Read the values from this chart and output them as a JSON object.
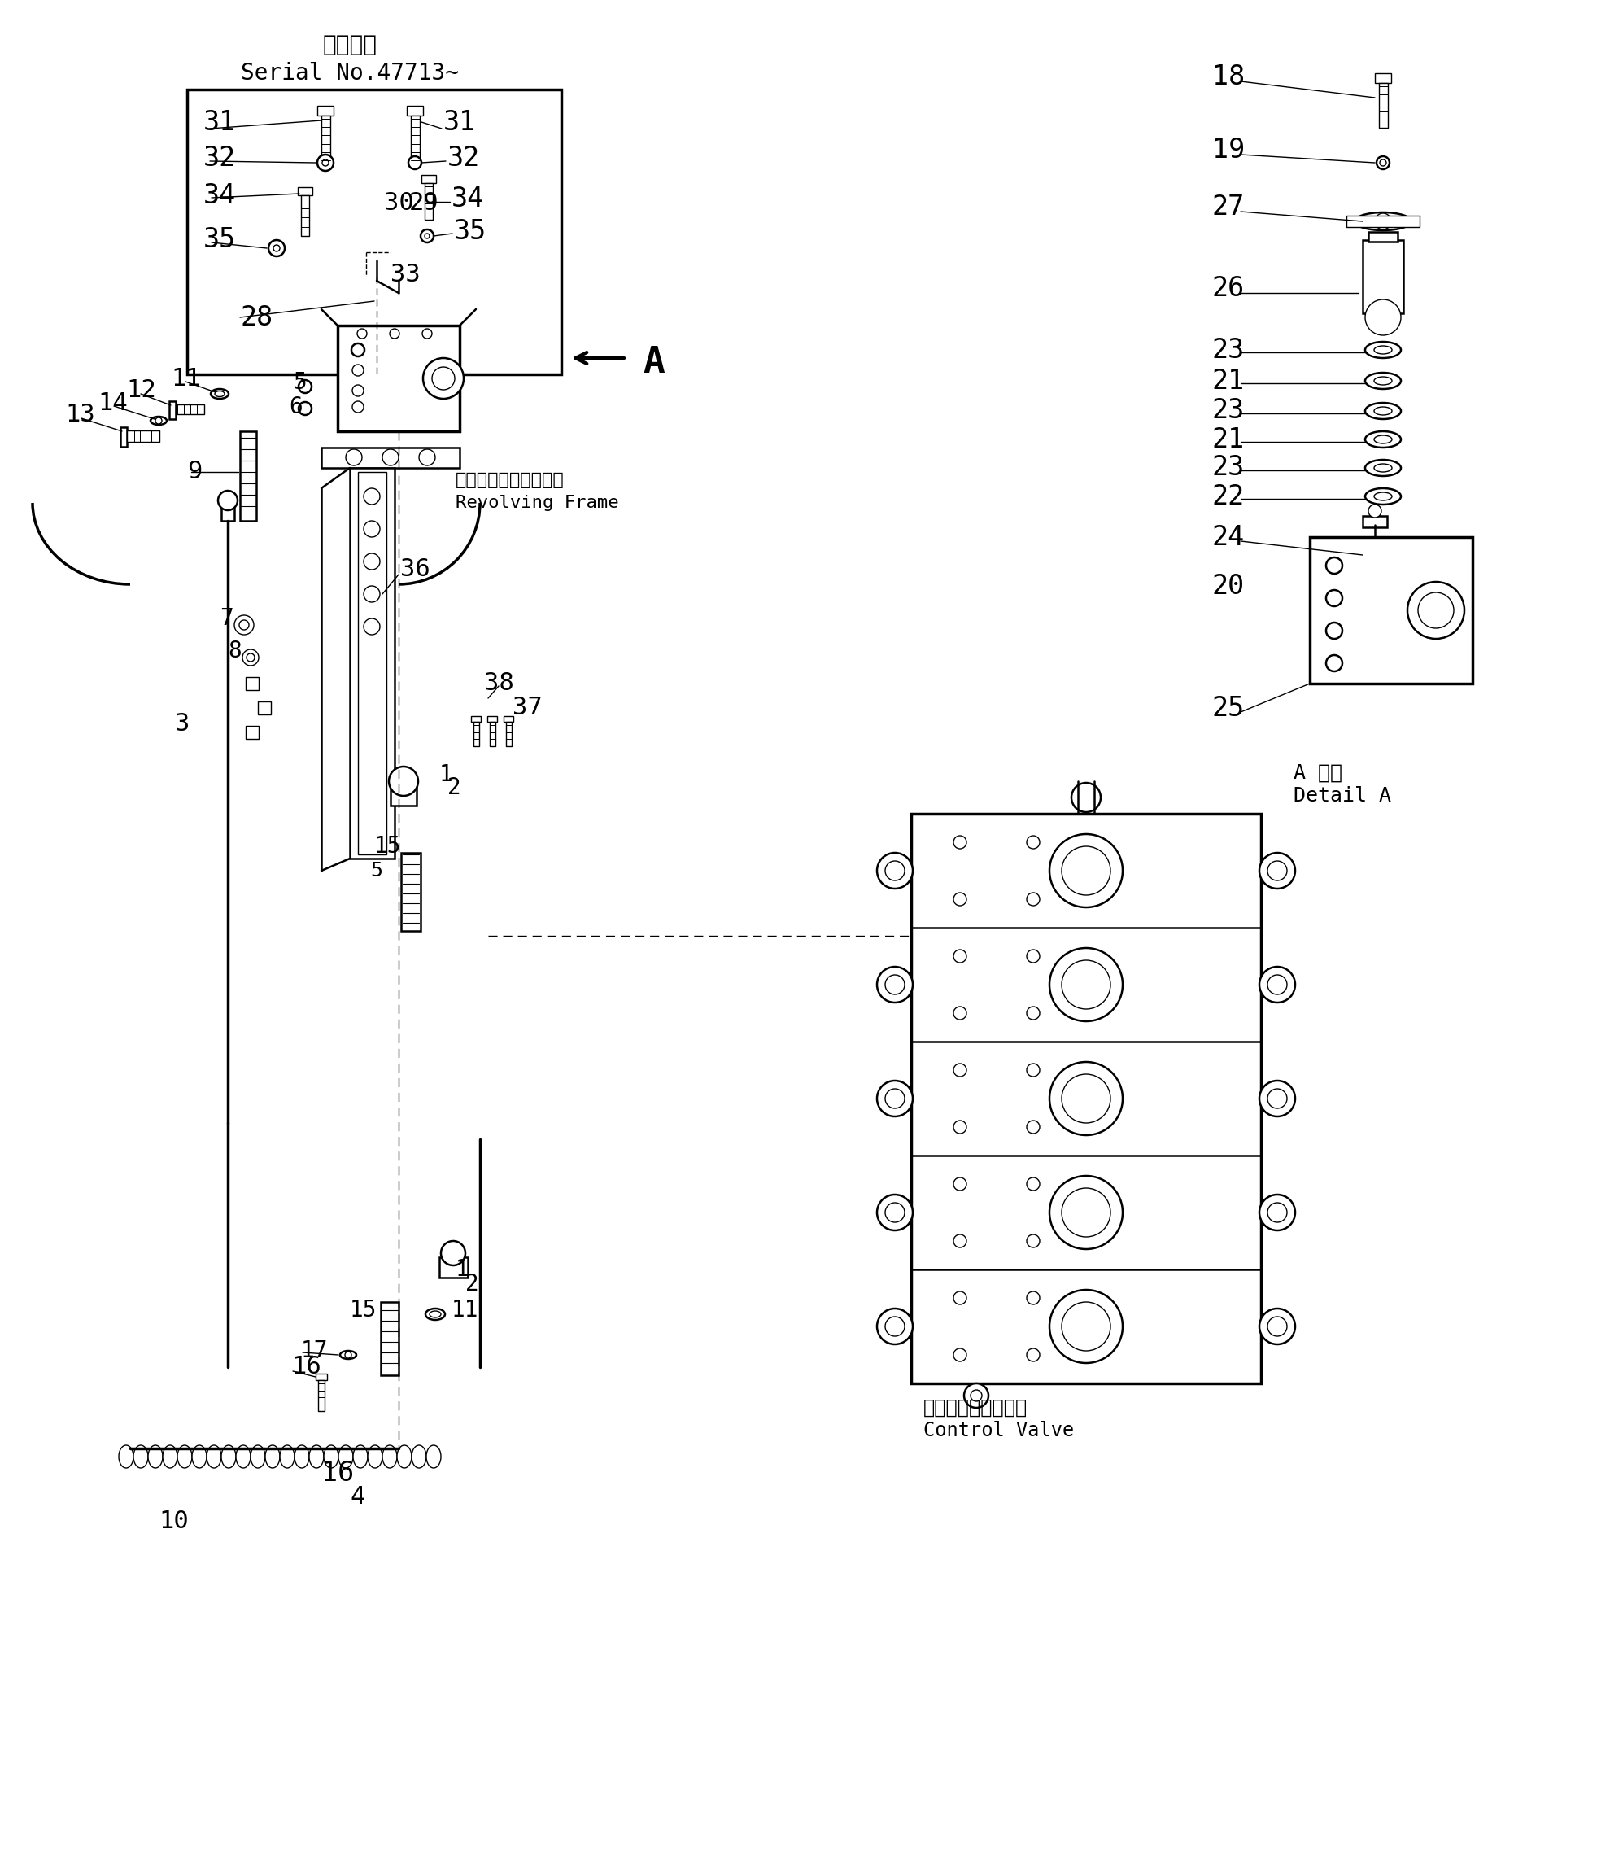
{
  "bg_color": "#ffffff",
  "serial_text_jp": "適用号機",
  "serial_text_en": "Serial No.47713~",
  "revolving_jp": "レボルビングフレーム",
  "revolving_en": "Revolving Frame",
  "control_jp": "コントロールバルブ",
  "control_en": "Control Valve",
  "detail_label_jp": "A 詳細",
  "detail_label_en": "Detail A"
}
